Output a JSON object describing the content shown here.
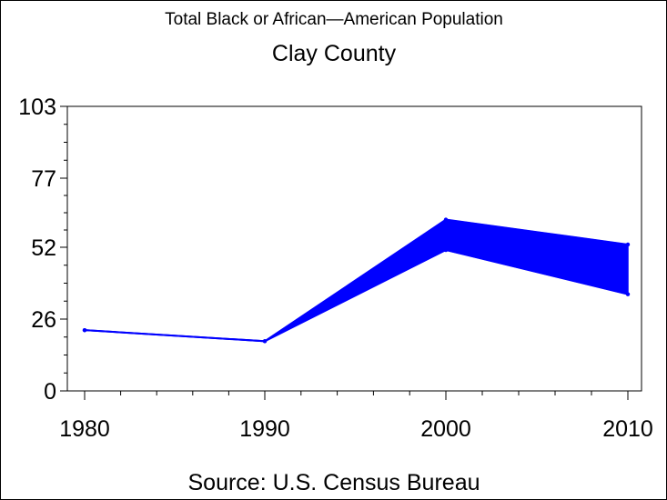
{
  "chart_data": {
    "type": "area",
    "title": "Total Black or African—American Population",
    "subtitle": "Clay County",
    "source": "Source: U.S. Census Bureau",
    "xlabel": "",
    "ylabel": "",
    "x": [
      "1980",
      "1990",
      "2000",
      "2010"
    ],
    "x_ticks": [
      "1980",
      "1990",
      "2000",
      "2010"
    ],
    "y_ticks": [
      "0",
      "26",
      "52",
      "77",
      "103"
    ],
    "ylim": [
      0,
      103
    ],
    "series": [
      {
        "upper": [
          22,
          18,
          62,
          53
        ]
      },
      {
        "lower": [
          22,
          18,
          51,
          35
        ]
      }
    ],
    "grid": false,
    "colors": {
      "fill": "#0000ff",
      "line": "#0000ff"
    }
  }
}
